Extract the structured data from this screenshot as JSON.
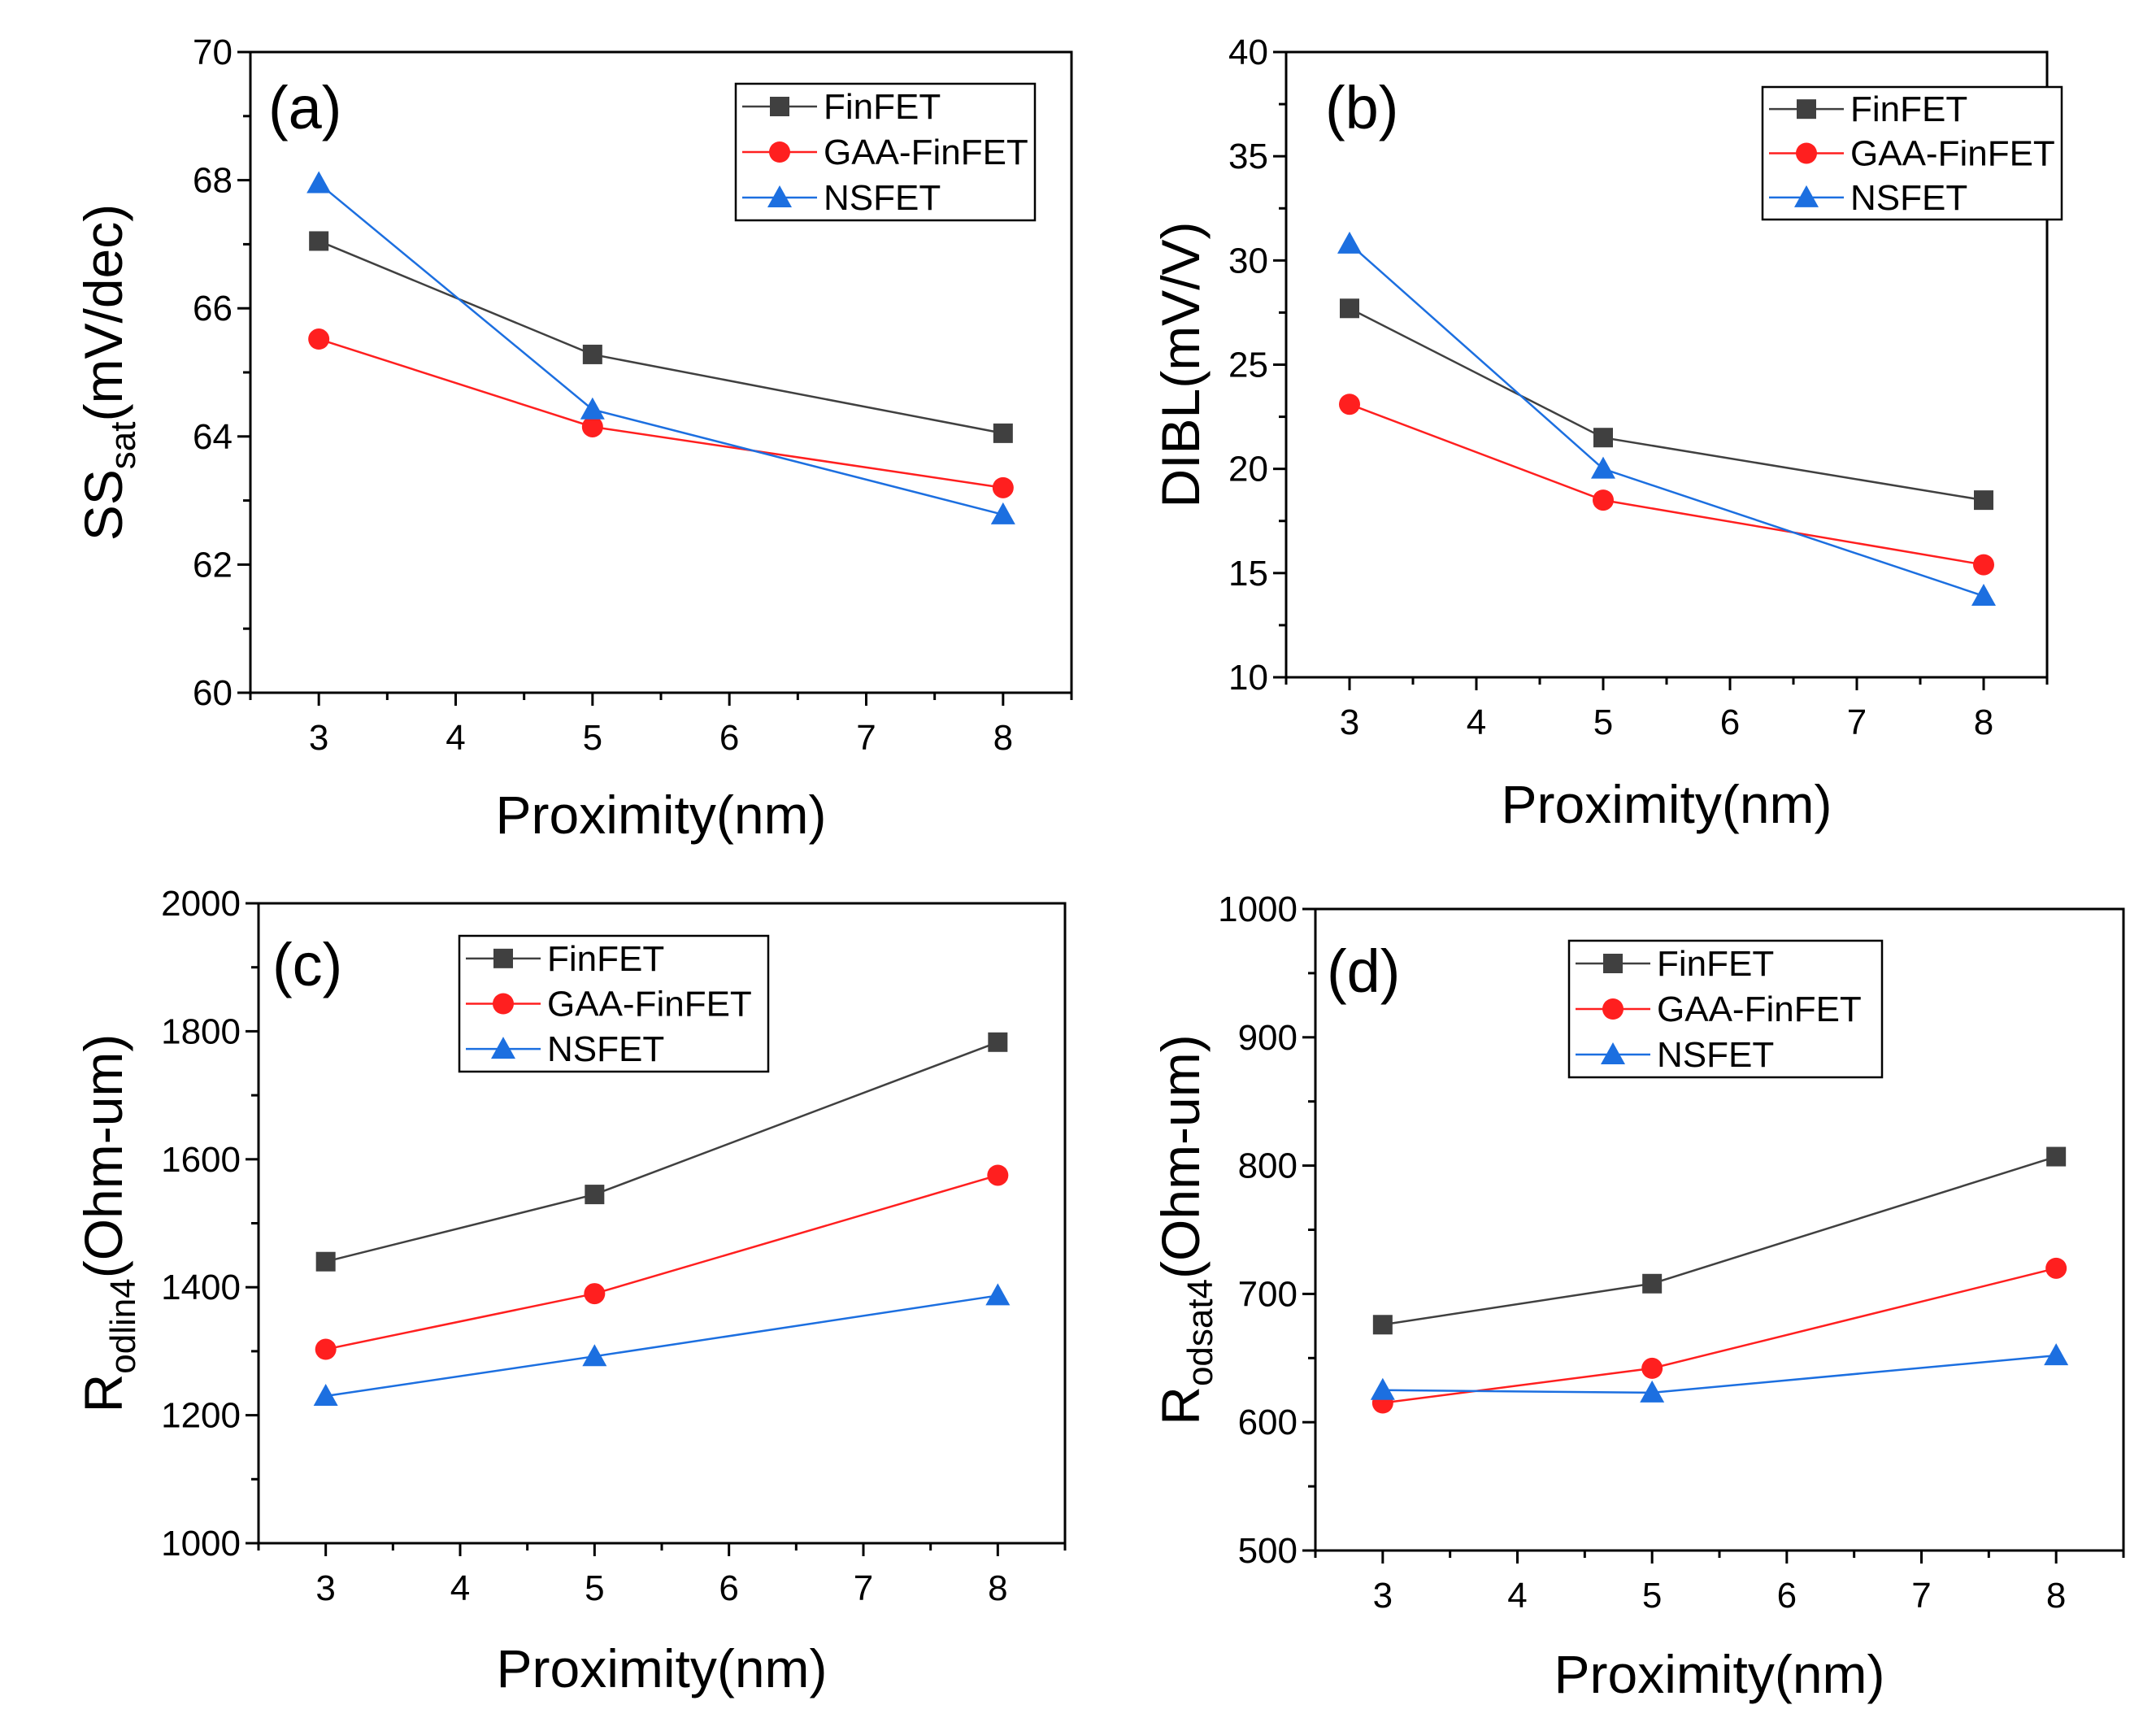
{
  "figure": {
    "background": "#ffffff"
  },
  "colors": {
    "FinFET": "#404040",
    "GAA-FinFET": "#ff1f1f",
    "NSFET": "#1c6fe0",
    "axis": "#000000"
  },
  "chart_data": [
    {
      "type": "line",
      "panel_label": "(a)",
      "xlabel": "Proximity(nm)",
      "ylabel": {
        "main": "SS",
        "sub": "sat",
        "rest": "(mV/dec)"
      },
      "xlim": [
        2.5,
        8.5
      ],
      "ylim": [
        60,
        70
      ],
      "xticks": [
        3,
        4,
        5,
        6,
        7,
        8
      ],
      "yticks": [
        60,
        62,
        64,
        66,
        68,
        70
      ],
      "x": [
        3,
        5,
        8
      ],
      "series": [
        {
          "name": "FinFET",
          "marker": "square",
          "values": [
            67.05,
            65.28,
            64.05
          ]
        },
        {
          "name": "GAA-FinFET",
          "marker": "circle",
          "values": [
            65.52,
            64.15,
            63.2
          ]
        },
        {
          "name": "NSFET",
          "marker": "triangle",
          "values": [
            67.95,
            64.42,
            62.78
          ]
        }
      ],
      "legend": "top-right"
    },
    {
      "type": "line",
      "panel_label": "(b)",
      "xlabel": "Proximity(nm)",
      "ylabel": {
        "main": "DIBL(mV/V)",
        "sub": "",
        "rest": ""
      },
      "xlim": [
        2.5,
        8.5
      ],
      "ylim": [
        10,
        40
      ],
      "xticks": [
        3,
        4,
        5,
        6,
        7,
        8
      ],
      "yticks": [
        10,
        15,
        20,
        25,
        30,
        35,
        40
      ],
      "x": [
        3,
        5,
        8
      ],
      "series": [
        {
          "name": "FinFET",
          "marker": "square",
          "values": [
            27.7,
            21.5,
            18.5
          ]
        },
        {
          "name": "GAA-FinFET",
          "marker": "circle",
          "values": [
            23.1,
            18.5,
            15.4
          ]
        },
        {
          "name": "NSFET",
          "marker": "triangle",
          "values": [
            30.8,
            20.0,
            13.9
          ]
        }
      ],
      "legend": "top-right"
    },
    {
      "type": "line",
      "panel_label": "(c)",
      "xlabel": "Proximity(nm)",
      "ylabel": {
        "main": "R",
        "sub": "odlin4",
        "rest": "(Ohm-um)"
      },
      "xlim": [
        2.5,
        8.5
      ],
      "ylim": [
        1000,
        2000
      ],
      "xticks": [
        3,
        4,
        5,
        6,
        7,
        8
      ],
      "yticks": [
        1000,
        1200,
        1400,
        1600,
        1800,
        2000
      ],
      "x": [
        3,
        5,
        8
      ],
      "series": [
        {
          "name": "FinFET",
          "marker": "square",
          "values": [
            1440,
            1545,
            1783
          ]
        },
        {
          "name": "GAA-FinFET",
          "marker": "circle",
          "values": [
            1303,
            1390,
            1575
          ]
        },
        {
          "name": "NSFET",
          "marker": "triangle",
          "values": [
            1230,
            1292,
            1387
          ]
        }
      ],
      "legend": "top-center"
    },
    {
      "type": "line",
      "panel_label": "(d)",
      "xlabel": "Proximity(nm)",
      "ylabel": {
        "main": "R",
        "sub": "odsat4",
        "rest": "(Ohm-um)"
      },
      "xlim": [
        2.5,
        8.5
      ],
      "ylim": [
        500,
        1000
      ],
      "xticks": [
        3,
        4,
        5,
        6,
        7,
        8
      ],
      "yticks": [
        500,
        600,
        700,
        800,
        900,
        1000
      ],
      "x": [
        3,
        5,
        8
      ],
      "series": [
        {
          "name": "FinFET",
          "marker": "square",
          "values": [
            676,
            708,
            807
          ]
        },
        {
          "name": "GAA-FinFET",
          "marker": "circle",
          "values": [
            615,
            642,
            720
          ]
        },
        {
          "name": "NSFET",
          "marker": "triangle",
          "values": [
            625,
            623,
            652
          ]
        }
      ],
      "legend": "top-center"
    }
  ]
}
